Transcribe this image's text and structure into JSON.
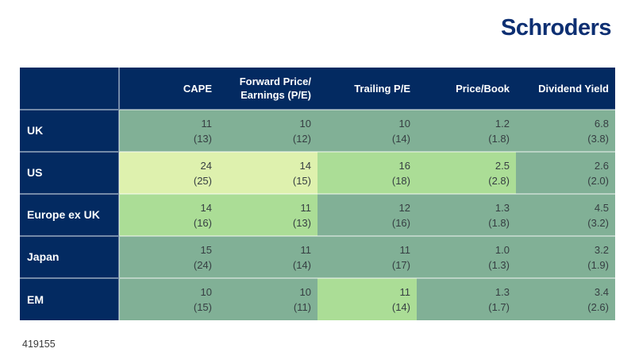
{
  "logo": {
    "text": "Schroders"
  },
  "footer": {
    "note": "419155"
  },
  "colors": {
    "navy": "#032a61",
    "logo_blue": "#0d2f72",
    "base_green": "#81b096",
    "mid_green": "#abdd96",
    "light_green": "#def1ae",
    "separator": "rgba(255,255,255,0.45)",
    "value_text": "#363e42"
  },
  "chart_data": {
    "type": "table",
    "title": "",
    "legend": "Main value with prior value shown in parentheses; cell shading levels: base, mid, light",
    "columns": [
      {
        "id": "cape",
        "lines": [
          "CAPE"
        ]
      },
      {
        "id": "forward_pe",
        "lines": [
          "Forward Price/",
          "Earnings (P/E)"
        ]
      },
      {
        "id": "trailing_pe",
        "lines": [
          "Trailing P/E"
        ]
      },
      {
        "id": "price_book",
        "lines": [
          "Price/Book"
        ]
      },
      {
        "id": "dividend_yield",
        "lines": [
          "Dividend Yield"
        ]
      }
    ],
    "rows": [
      {
        "label": "UK",
        "cells": [
          {
            "value": "11",
            "prior": "(13)",
            "highlight": "base"
          },
          {
            "value": "10",
            "prior": "(12)",
            "highlight": "base"
          },
          {
            "value": "10",
            "prior": "(14)",
            "highlight": "base"
          },
          {
            "value": "1.2",
            "prior": "(1.8)",
            "highlight": "base"
          },
          {
            "value": "6.8",
            "prior": "(3.8)",
            "highlight": "base"
          }
        ]
      },
      {
        "label": "US",
        "cells": [
          {
            "value": "24",
            "prior": "(25)",
            "highlight": "light"
          },
          {
            "value": "14",
            "prior": "(15)",
            "highlight": "light"
          },
          {
            "value": "16",
            "prior": "(18)",
            "highlight": "mid"
          },
          {
            "value": "2.5",
            "prior": "(2.8)",
            "highlight": "mid"
          },
          {
            "value": "2.6",
            "prior": "(2.0)",
            "highlight": "base"
          }
        ]
      },
      {
        "label": "Europe ex UK",
        "cells": [
          {
            "value": "14",
            "prior": "(16)",
            "highlight": "mid"
          },
          {
            "value": "11",
            "prior": "(13)",
            "highlight": "mid"
          },
          {
            "value": "12",
            "prior": "(16)",
            "highlight": "base"
          },
          {
            "value": "1.3",
            "prior": "(1.8)",
            "highlight": "base"
          },
          {
            "value": "4.5",
            "prior": "(3.2)",
            "highlight": "base"
          }
        ]
      },
      {
        "label": "Japan",
        "cells": [
          {
            "value": "15",
            "prior": "(24)",
            "highlight": "base"
          },
          {
            "value": "11",
            "prior": "(14)",
            "highlight": "base"
          },
          {
            "value": "11",
            "prior": "(17)",
            "highlight": "base"
          },
          {
            "value": "1.0",
            "prior": "(1.3)",
            "highlight": "base"
          },
          {
            "value": "3.2",
            "prior": "(1.9)",
            "highlight": "base"
          }
        ]
      },
      {
        "label": "EM",
        "cells": [
          {
            "value": "10",
            "prior": "(15)",
            "highlight": "base"
          },
          {
            "value": "10",
            "prior": "(11)",
            "highlight": "base"
          },
          {
            "value": "11",
            "prior": "(14)",
            "highlight": "mid"
          },
          {
            "value": "1.3",
            "prior": "(1.7)",
            "highlight": "base"
          },
          {
            "value": "3.4",
            "prior": "(2.6)",
            "highlight": "base"
          }
        ]
      }
    ]
  }
}
